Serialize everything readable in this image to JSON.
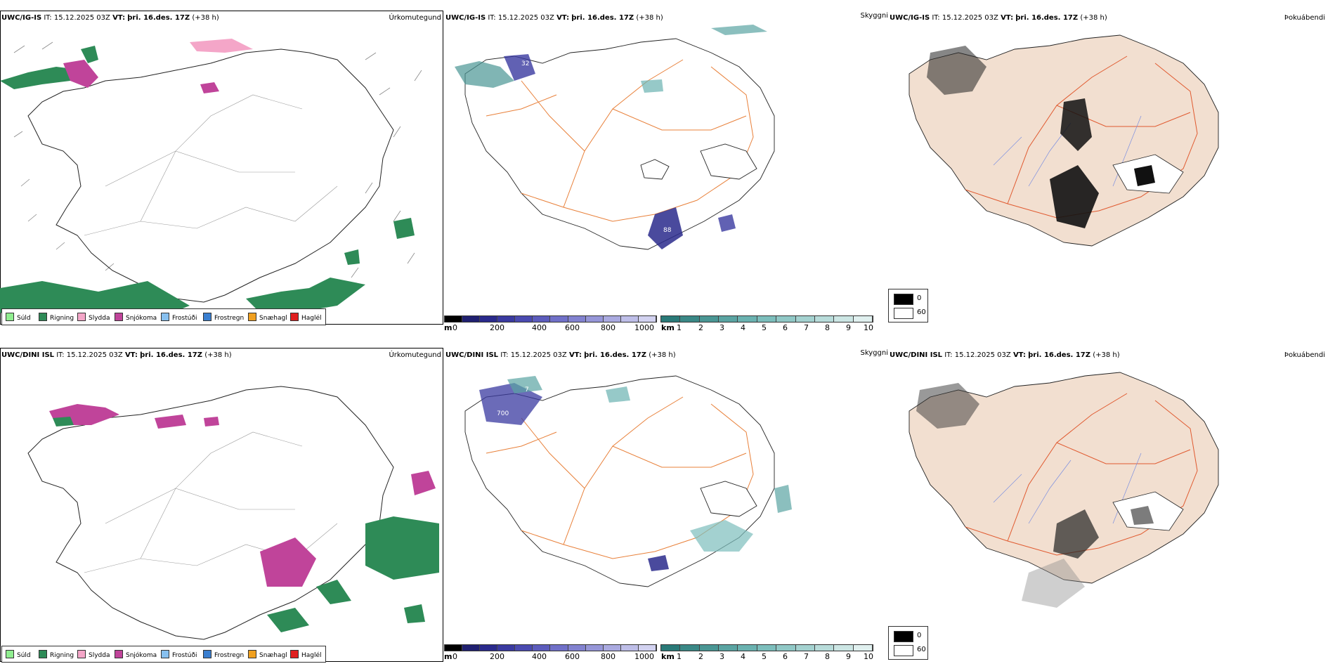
{
  "rows": [
    {
      "model": "UWC/IG-IS",
      "it_label": "IT:",
      "it_value": "15.12.2025 03Z",
      "vt_label": "VT:",
      "vt_value": "þri. 16.des. 17Z",
      "lead": "(+38 h)"
    },
    {
      "model": "UWC/DINI ISL",
      "it_label": "IT:",
      "it_value": "15.12.2025 03Z",
      "vt_label": "VT:",
      "vt_value": "þri. 16.des. 17Z",
      "lead": "(+38 h)"
    }
  ],
  "variables": {
    "precip": "Úrkomutegund",
    "visibility": "Skyggni",
    "fog": "Þokuábendi"
  },
  "precip_legend": [
    {
      "label": "Súld",
      "color": "#90ee90"
    },
    {
      "label": "Rigning",
      "color": "#2e8b57"
    },
    {
      "label": "Slydda",
      "color": "#f4a6c8"
    },
    {
      "label": "Snjókoma",
      "color": "#c0449a"
    },
    {
      "label": "Frostúði",
      "color": "#87c0ef"
    },
    {
      "label": "Frostregn",
      "color": "#3a7fd0"
    },
    {
      "label": "Snæhagl",
      "color": "#f0a020"
    },
    {
      "label": "Haglél",
      "color": "#e02020"
    }
  ],
  "ceiling_bar": {
    "unit": "m",
    "ticks": [
      "0",
      "200",
      "400",
      "600",
      "800",
      "1000"
    ],
    "colors": [
      "#000000",
      "#202070",
      "#2a2a8c",
      "#3a3aa0",
      "#4a4ab0",
      "#5c5cbc",
      "#7070c8",
      "#8282d0",
      "#9696d8",
      "#aaaae0",
      "#bebee8",
      "#d2d2f0"
    ]
  },
  "visibility_bar": {
    "unit": "km",
    "ticks": [
      "1",
      "2",
      "3",
      "4",
      "5",
      "6",
      "7",
      "8",
      "9",
      "10"
    ],
    "colors": [
      "#2a7a78",
      "#3a8886",
      "#4a9694",
      "#5aa4a2",
      "#6ab2b0",
      "#7cbebc",
      "#90c8c6",
      "#a4d2d0",
      "#b8dcda",
      "#cce6e4",
      "#e0f0ef"
    ]
  },
  "fog_legend": [
    {
      "label": "0",
      "color": "#000000"
    },
    {
      "label": "60",
      "color": "#ffffff"
    }
  ],
  "map_labels": {
    "row0": [
      "32",
      "88"
    ],
    "row1": [
      "7",
      "700"
    ]
  }
}
